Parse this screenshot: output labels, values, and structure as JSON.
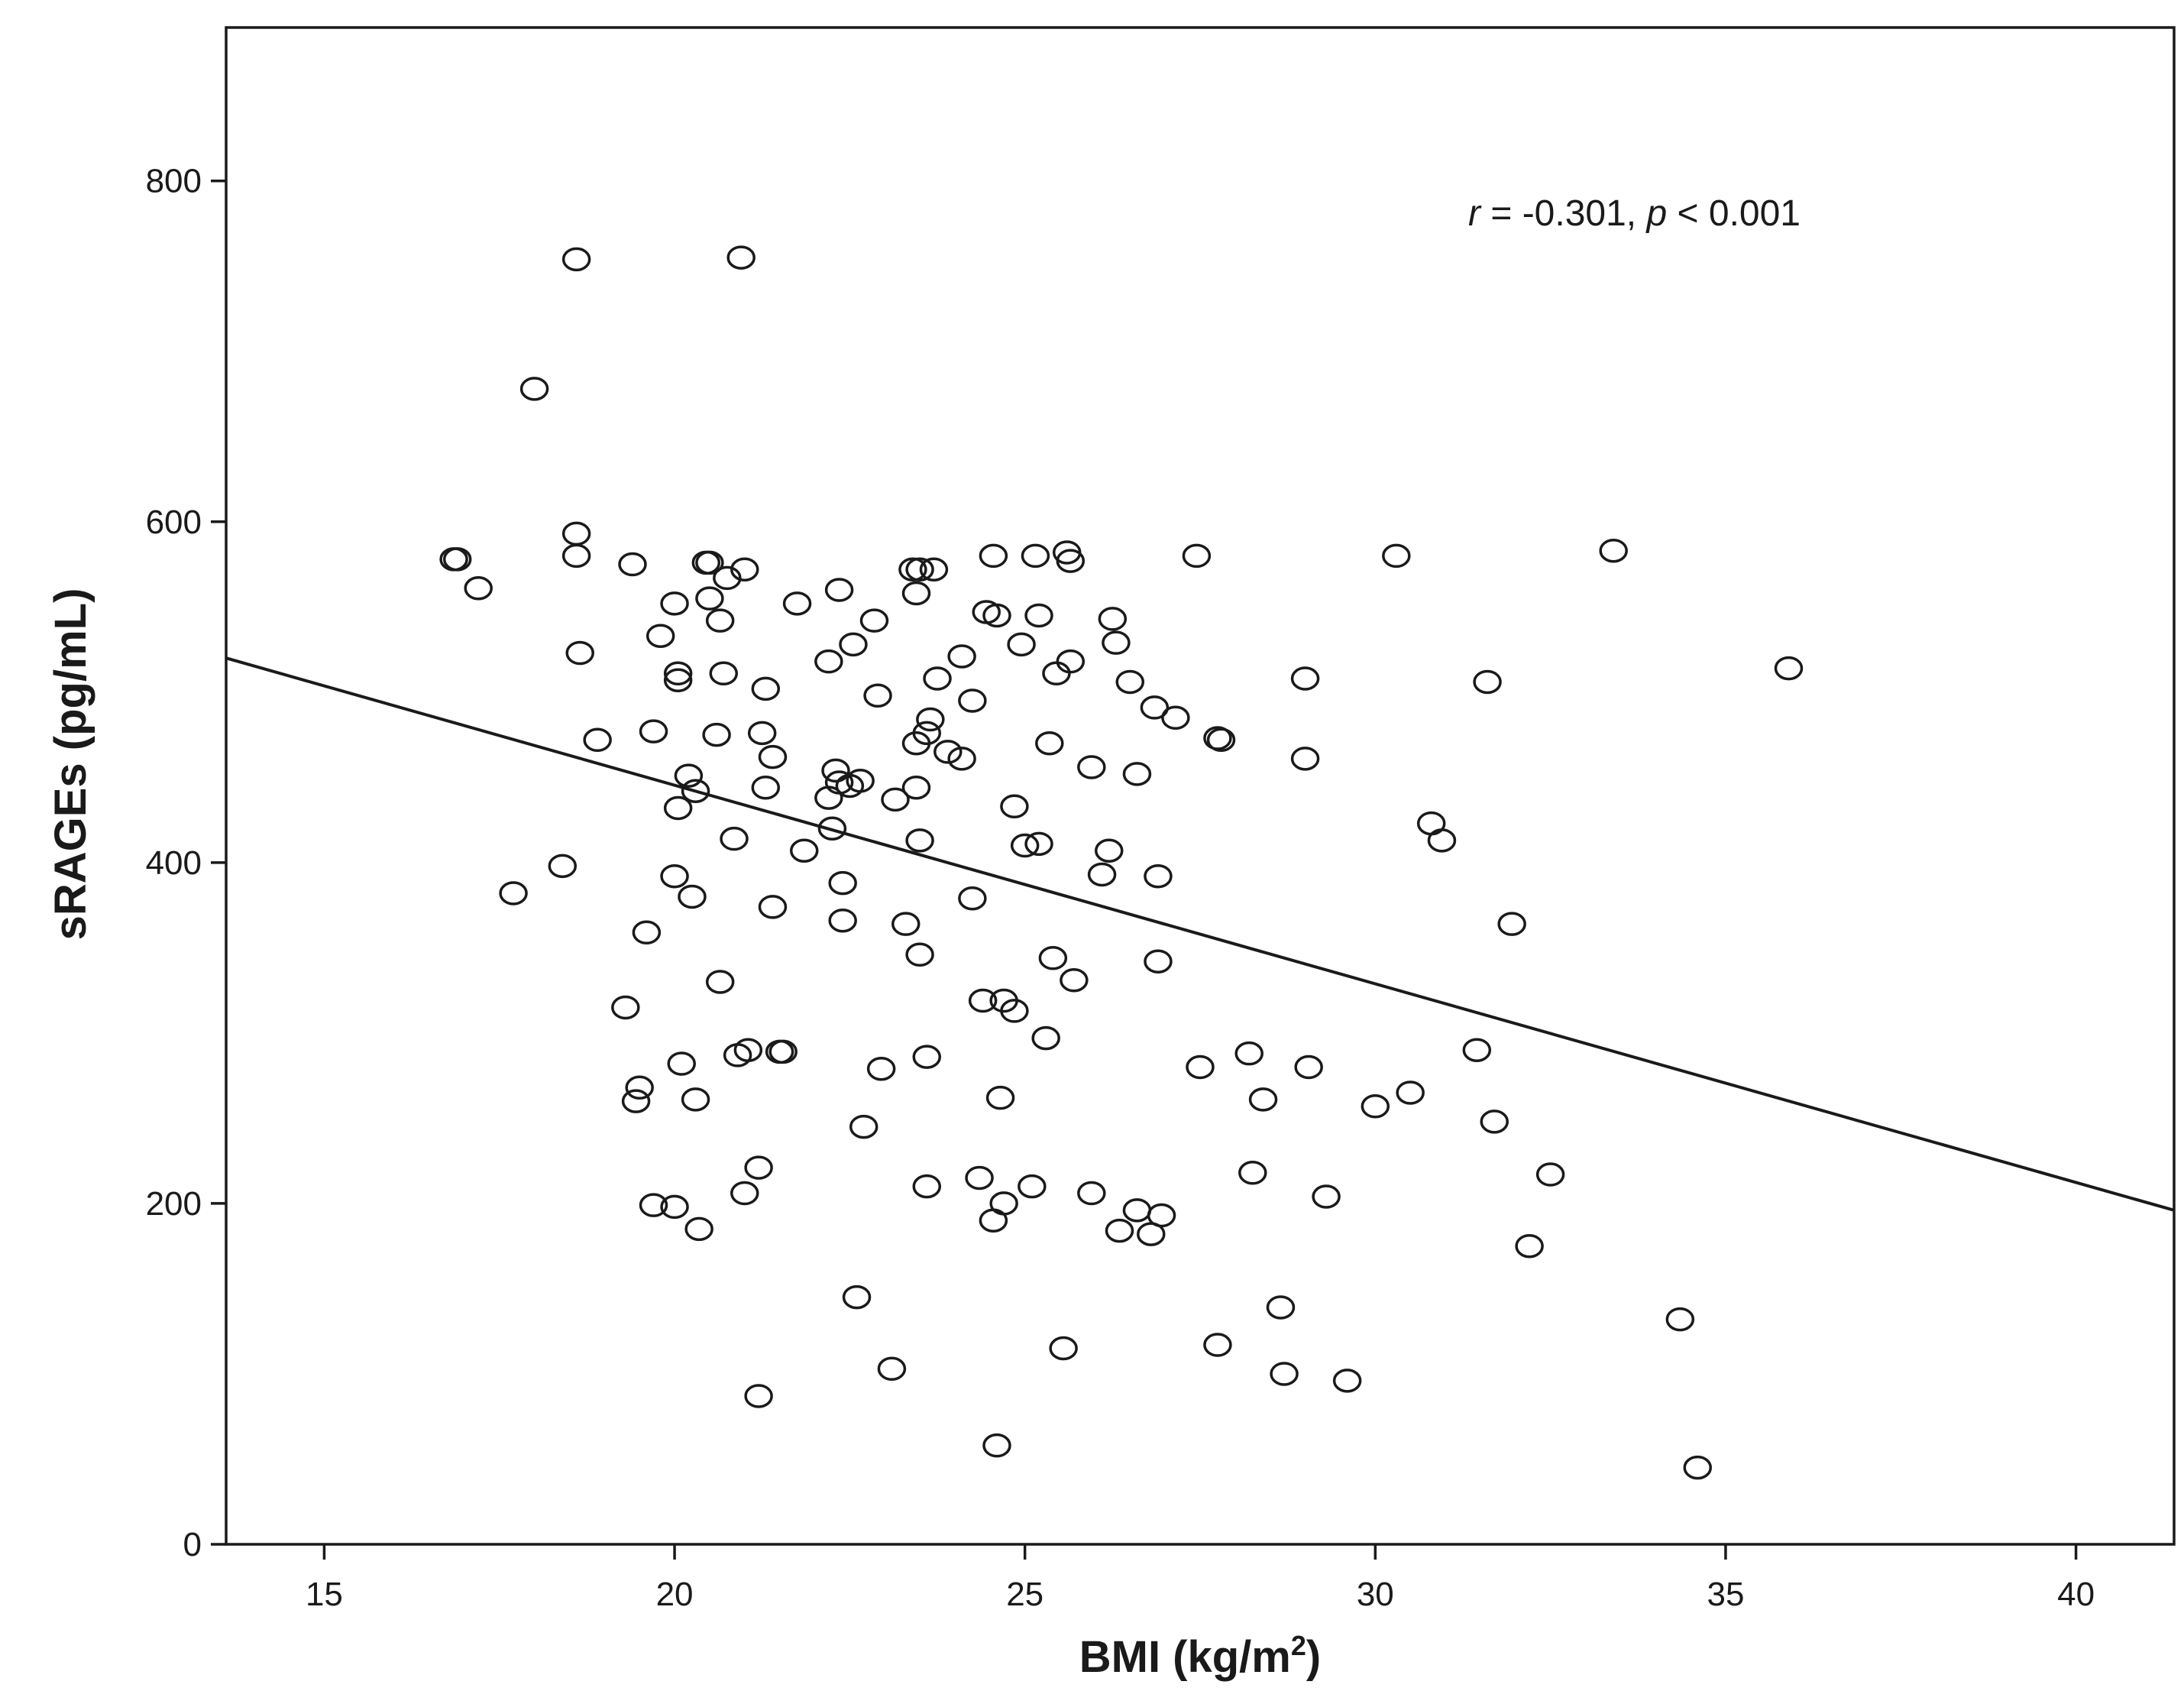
{
  "chart_data": {
    "type": "scatter",
    "xlabel": "BMI (kg/m",
    "xlabel_sup": "2",
    "xlabel_end": ")",
    "ylabel": "sRAGEs (pg/mL)",
    "xlim": [
      13.6,
      41.4
    ],
    "ylim": [
      0,
      890
    ],
    "xticks": [
      "15",
      "20",
      "25",
      "30",
      "35",
      "40"
    ],
    "yticks": [
      "0",
      "200",
      "400",
      "600",
      "800"
    ],
    "grid": false,
    "legend": "none",
    "annotation": {
      "r_symbol": "r",
      "r_text": " = -0.301, ",
      "p_symbol": "p",
      "p_text": " < 0.001"
    },
    "regression_line": {
      "x": [
        13.6,
        41.4
      ],
      "y": [
        520,
        196
      ]
    },
    "series": [
      {
        "points": [
          [
            16.9,
            578
          ],
          [
            16.85,
            578
          ],
          [
            17.2,
            561
          ],
          [
            17.7,
            382
          ],
          [
            18.0,
            678
          ],
          [
            18.4,
            398
          ],
          [
            18.6,
            754
          ],
          [
            18.6,
            593
          ],
          [
            18.6,
            580
          ],
          [
            18.65,
            523
          ],
          [
            18.9,
            472
          ],
          [
            19.3,
            315
          ],
          [
            19.4,
            575
          ],
          [
            19.45,
            260
          ],
          [
            19.5,
            268
          ],
          [
            19.6,
            359
          ],
          [
            19.7,
            477
          ],
          [
            19.7,
            199
          ],
          [
            19.8,
            533
          ],
          [
            20.0,
            198
          ],
          [
            20.0,
            392
          ],
          [
            20.0,
            552
          ],
          [
            20.05,
            511
          ],
          [
            20.05,
            507
          ],
          [
            20.05,
            432
          ],
          [
            20.1,
            282
          ],
          [
            20.2,
            451
          ],
          [
            20.25,
            380
          ],
          [
            20.3,
            442
          ],
          [
            20.3,
            261
          ],
          [
            20.35,
            185
          ],
          [
            20.45,
            576
          ],
          [
            20.5,
            576
          ],
          [
            20.5,
            555
          ],
          [
            20.6,
            475
          ],
          [
            20.65,
            542
          ],
          [
            20.65,
            330
          ],
          [
            20.7,
            511
          ],
          [
            20.75,
            567
          ],
          [
            20.85,
            414
          ],
          [
            20.9,
            287
          ],
          [
            20.95,
            755
          ],
          [
            21.0,
            572
          ],
          [
            21.0,
            206
          ],
          [
            21.05,
            290
          ],
          [
            21.2,
            221
          ],
          [
            21.2,
            87
          ],
          [
            21.25,
            476
          ],
          [
            21.3,
            502
          ],
          [
            21.3,
            444
          ],
          [
            21.4,
            462
          ],
          [
            21.4,
            374
          ],
          [
            21.5,
            289
          ],
          [
            21.55,
            289
          ],
          [
            21.75,
            552
          ],
          [
            21.85,
            407
          ],
          [
            22.2,
            438
          ],
          [
            22.2,
            518
          ],
          [
            22.25,
            420
          ],
          [
            22.3,
            454
          ],
          [
            22.35,
            447
          ],
          [
            22.35,
            560
          ],
          [
            22.4,
            388
          ],
          [
            22.4,
            366
          ],
          [
            22.5,
            445
          ],
          [
            22.55,
            528
          ],
          [
            22.6,
            145
          ],
          [
            22.65,
            448
          ],
          [
            22.7,
            245
          ],
          [
            22.85,
            542
          ],
          [
            22.9,
            498
          ],
          [
            22.95,
            279
          ],
          [
            23.1,
            103
          ],
          [
            23.15,
            437
          ],
          [
            23.3,
            364
          ],
          [
            23.4,
            572
          ],
          [
            23.45,
            470
          ],
          [
            23.45,
            558
          ],
          [
            23.45,
            444
          ],
          [
            23.5,
            572
          ],
          [
            23.5,
            346
          ],
          [
            23.5,
            413
          ],
          [
            23.6,
            476
          ],
          [
            23.6,
            286
          ],
          [
            23.6,
            210
          ],
          [
            23.65,
            484
          ],
          [
            23.7,
            572
          ],
          [
            23.75,
            508
          ],
          [
            23.9,
            465
          ],
          [
            24.1,
            461
          ],
          [
            24.1,
            521
          ],
          [
            24.25,
            379
          ],
          [
            24.25,
            495
          ],
          [
            24.35,
            215
          ],
          [
            24.4,
            319
          ],
          [
            24.45,
            547
          ],
          [
            24.55,
            580
          ],
          [
            24.55,
            190
          ],
          [
            24.6,
            545
          ],
          [
            24.6,
            58
          ],
          [
            24.65,
            262
          ],
          [
            24.7,
            200
          ],
          [
            24.7,
            319
          ],
          [
            24.85,
            313
          ],
          [
            24.85,
            433
          ],
          [
            24.95,
            528
          ],
          [
            25.0,
            410
          ],
          [
            25.1,
            210
          ],
          [
            25.15,
            580
          ],
          [
            25.2,
            545
          ],
          [
            25.2,
            411
          ],
          [
            25.3,
            297
          ],
          [
            25.35,
            470
          ],
          [
            25.4,
            344
          ],
          [
            25.45,
            511
          ],
          [
            25.55,
            115
          ],
          [
            25.6,
            582
          ],
          [
            25.65,
            577
          ],
          [
            25.65,
            518
          ],
          [
            25.7,
            331
          ],
          [
            25.95,
            456
          ],
          [
            25.95,
            206
          ],
          [
            26.1,
            393
          ],
          [
            26.2,
            407
          ],
          [
            26.25,
            543
          ],
          [
            26.3,
            529
          ],
          [
            26.35,
            184
          ],
          [
            26.5,
            506
          ],
          [
            26.6,
            452
          ],
          [
            26.6,
            196
          ],
          [
            26.8,
            182
          ],
          [
            26.85,
            491
          ],
          [
            26.9,
            392
          ],
          [
            26.9,
            342
          ],
          [
            26.95,
            193
          ],
          [
            27.15,
            485
          ],
          [
            27.45,
            580
          ],
          [
            27.5,
            280
          ],
          [
            27.75,
            473
          ],
          [
            27.75,
            117
          ],
          [
            27.8,
            472
          ],
          [
            28.2,
            288
          ],
          [
            28.25,
            218
          ],
          [
            28.4,
            261
          ],
          [
            28.65,
            139
          ],
          [
            28.7,
            100
          ],
          [
            29.0,
            508
          ],
          [
            29.0,
            461
          ],
          [
            29.05,
            280
          ],
          [
            29.3,
            204
          ],
          [
            29.6,
            96
          ],
          [
            30.0,
            257
          ],
          [
            30.3,
            580
          ],
          [
            30.5,
            265
          ],
          [
            30.8,
            423
          ],
          [
            30.95,
            413
          ],
          [
            31.45,
            290
          ],
          [
            31.6,
            506
          ],
          [
            31.7,
            248
          ],
          [
            31.95,
            364
          ],
          [
            32.2,
            175
          ],
          [
            32.5,
            217
          ],
          [
            33.4,
            583
          ],
          [
            34.35,
            132
          ],
          [
            34.6,
            45
          ],
          [
            35.9,
            514
          ]
        ]
      }
    ]
  }
}
